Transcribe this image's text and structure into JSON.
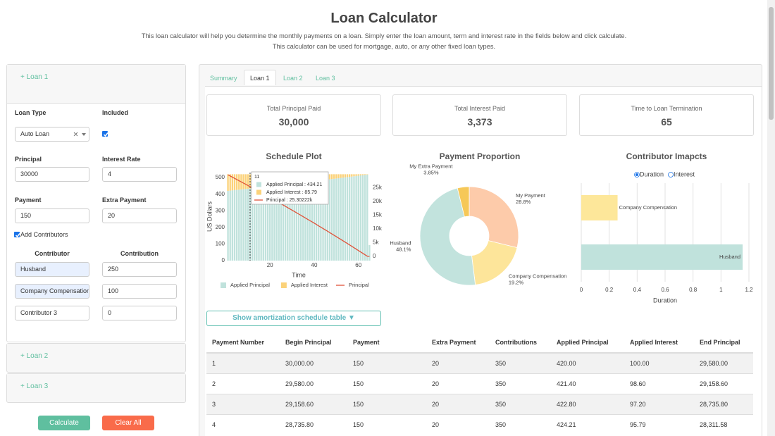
{
  "header": {
    "title": "Loan Calculator",
    "description": [
      "This loan calculator will help you determine the monthly payments on a loan. Simply enter the loan amount, term and interest rate in the fields below and click calculate.",
      "This calculator can be used for mortgage, auto, or any other fixed loan types."
    ]
  },
  "sidebar": {
    "loan_panels": [
      "+ Loan 1",
      "+ Loan 2",
      "+ Loan 3"
    ],
    "form": {
      "loan_type": {
        "label": "Loan Type",
        "value": "Auto Loan"
      },
      "included": {
        "label": "Included",
        "checked": true
      },
      "principal": {
        "label": "Principal",
        "value": "30000"
      },
      "interest_rate": {
        "label": "Interest Rate",
        "value": "4"
      },
      "payment": {
        "label": "Payment",
        "value": "150"
      },
      "extra_payment": {
        "label": "Extra Payment",
        "value": "20"
      },
      "add_contributors": {
        "label": "Add Contributors",
        "checked": true
      },
      "contributor_header": "Contributor",
      "contribution_header": "Contribution",
      "contributors": [
        [
          "Husband",
          "250"
        ],
        [
          "Company Compensation",
          "100"
        ],
        [
          "Contributor 3",
          "0"
        ]
      ]
    },
    "buttons": [
      "Calculate",
      "Clear All"
    ]
  },
  "main": {
    "tabs": [
      "Summary",
      "Loan 1",
      "Loan 2",
      "Loan 3"
    ],
    "active_tab": 1,
    "stats": [
      {
        "label": "Total Principal Paid",
        "value": "30,000"
      },
      {
        "label": "Total Interest Paid",
        "value": "3,373"
      },
      {
        "label": "Time to Loan Termination",
        "value": "65"
      }
    ],
    "show_table_button": "Show amortization schedule table ▼",
    "table": {
      "headers": [
        "Payment Number",
        "Begin Principal",
        "Payment",
        "Extra Payment",
        "Contributions",
        "Applied Principal",
        "Applied Interest",
        "End Principal"
      ],
      "rows": [
        [
          "1",
          "30,000.00",
          "150",
          "20",
          "350",
          "420.00",
          "100.00",
          "29,580.00"
        ],
        [
          "2",
          "29,580.00",
          "150",
          "20",
          "350",
          "421.40",
          "98.60",
          "29,158.60"
        ],
        [
          "3",
          "29,158.60",
          "150",
          "20",
          "350",
          "422.80",
          "97.20",
          "28,735.80"
        ],
        [
          "4",
          "28,735.80",
          "150",
          "20",
          "350",
          "424.21",
          "95.79",
          "28,311.58"
        ]
      ]
    }
  },
  "charts": [
    {
      "type": "bar",
      "title": "Schedule Plot",
      "xlabel": "Time",
      "ylabel": "US Dollars",
      "stacked": true,
      "x": [
        1,
        2,
        3,
        4,
        5,
        6,
        7,
        8,
        9,
        10,
        11,
        12,
        13,
        14,
        15,
        16,
        17,
        18,
        19,
        20,
        21,
        22,
        23,
        24,
        25,
        26,
        27,
        28,
        29,
        30,
        31,
        32,
        33,
        34,
        35,
        36,
        37,
        38,
        39,
        40,
        41,
        42,
        43,
        44,
        45,
        46,
        47,
        48,
        49,
        50,
        51,
        52,
        53,
        54,
        55,
        56,
        57,
        58,
        59,
        60,
        61,
        62,
        63,
        64,
        65
      ],
      "series": [
        {
          "name": "Applied Principal",
          "color": "#c0e2dc",
          "values": [
            420,
            421.4,
            422.8,
            424.2,
            425.6,
            427,
            428.5,
            429.9,
            431.3,
            432.8,
            434.2,
            435.7,
            437.1,
            438.6,
            440,
            441.5,
            443,
            444.4,
            445.9,
            447.4,
            448.9,
            450.4,
            451.9,
            453.4,
            454.9,
            456.4,
            458,
            459.5,
            461,
            462.6,
            464.1,
            465.6,
            467.2,
            468.8,
            470.3,
            471.9,
            473.5,
            475,
            476.6,
            478.2,
            479.8,
            481.4,
            483,
            484.6,
            486.2,
            487.8,
            489.5,
            491.1,
            492.7,
            494.4,
            496,
            497.7,
            499.3,
            501,
            502.7,
            504.4,
            506,
            507.7,
            509.4,
            511.1,
            512.8,
            514.5,
            516.2,
            518,
            93.2
          ]
        },
        {
          "name": "Applied Interest",
          "color": "#fbd27a",
          "values": [
            100,
            98.6,
            97.2,
            95.8,
            94.4,
            93,
            91.5,
            90.1,
            88.7,
            87.2,
            85.8,
            84.3,
            82.9,
            81.4,
            80,
            78.5,
            77,
            75.6,
            74.1,
            72.6,
            71.1,
            69.6,
            68.1,
            66.6,
            65.1,
            63.6,
            62,
            60.5,
            59,
            57.4,
            55.9,
            54.4,
            52.8,
            51.2,
            49.7,
            48.1,
            46.5,
            45,
            43.4,
            41.8,
            40.2,
            38.6,
            37,
            35.4,
            33.8,
            32.2,
            30.5,
            28.9,
            27.3,
            25.6,
            24,
            22.3,
            20.7,
            19,
            17.3,
            15.6,
            14,
            12.3,
            10.6,
            8.9,
            7.2,
            5.5,
            3.8,
            2,
            0.3
          ]
        },
        {
          "name": "Principal",
          "color": "#e0533a",
          "axis": "y2",
          "values": [
            29580,
            29159,
            28736,
            28312,
            27886,
            27459,
            27031,
            26601,
            26169,
            25737,
            25302,
            24867,
            24430,
            23991,
            23551,
            23109,
            22666,
            22222,
            21776,
            21329,
            20880,
            20429,
            19978,
            19524,
            19069,
            18613,
            18155,
            17695,
            17234,
            16772,
            16308,
            15842,
            15375,
            14906,
            14436,
            13964,
            13490,
            13015,
            12539,
            12061,
            11581,
            11099,
            10616,
            10132,
            9646,
            9158,
            8668,
            8177,
            7684,
            7190,
            6694,
            6196,
            5697,
            5196,
            4693,
            4189,
            3683,
            3175,
            2666,
            2155,
            1642,
            1127,
            611,
            93,
            0
          ]
        }
      ],
      "xlim": [
        0.5,
        65.5
      ],
      "xticks": [
        20,
        40,
        60
      ],
      "ylim": [
        0,
        530
      ],
      "yticks": [
        0,
        100,
        200,
        300,
        400,
        500
      ],
      "y2lim": [
        -1500,
        30400
      ],
      "y2ticks": [
        0,
        {
          "value": 5000,
          "label": "5k"
        },
        {
          "value": 10000,
          "label": "10k"
        },
        {
          "value": 15000,
          "label": "15k"
        },
        {
          "value": 20000,
          "label": "20k"
        },
        {
          "value": 25000,
          "label": "25k"
        }
      ],
      "tooltip": {
        "x": 11,
        "lines": [
          "Applied Principal : 434.21",
          "Applied Interest : 85.79",
          "Principal : 25.30222k"
        ]
      }
    },
    {
      "type": "pie",
      "title": "Payment Proportion",
      "hole": 0.4,
      "categories": [
        "My Payment",
        "Company Compensation",
        "Husband",
        "My Extra Payment"
      ],
      "values": [
        28.8,
        19.2,
        48.1,
        3.85
      ],
      "value_labels": [
        "28.8%",
        "19.2%",
        "48.1%",
        "3.85%"
      ],
      "colors": [
        "#fdcbaa",
        "#fde59a",
        "#c2e3dd",
        "#f6c858"
      ]
    },
    {
      "type": "hbar",
      "title": "Contributor Imapcts",
      "options": [
        "Duration",
        "Interest"
      ],
      "selected": 0,
      "categories": [
        "Company Compensation",
        "Husband"
      ],
      "values": [
        0.26,
        1.155
      ],
      "colors": [
        "#fde79a",
        "#c0e2dc"
      ],
      "grid": true,
      "xlim": [
        0,
        1.2
      ],
      "xticks": [
        0,
        0.2,
        0.4,
        0.6,
        0.8,
        1,
        1.2
      ],
      "xlabel": "Duration"
    }
  ]
}
